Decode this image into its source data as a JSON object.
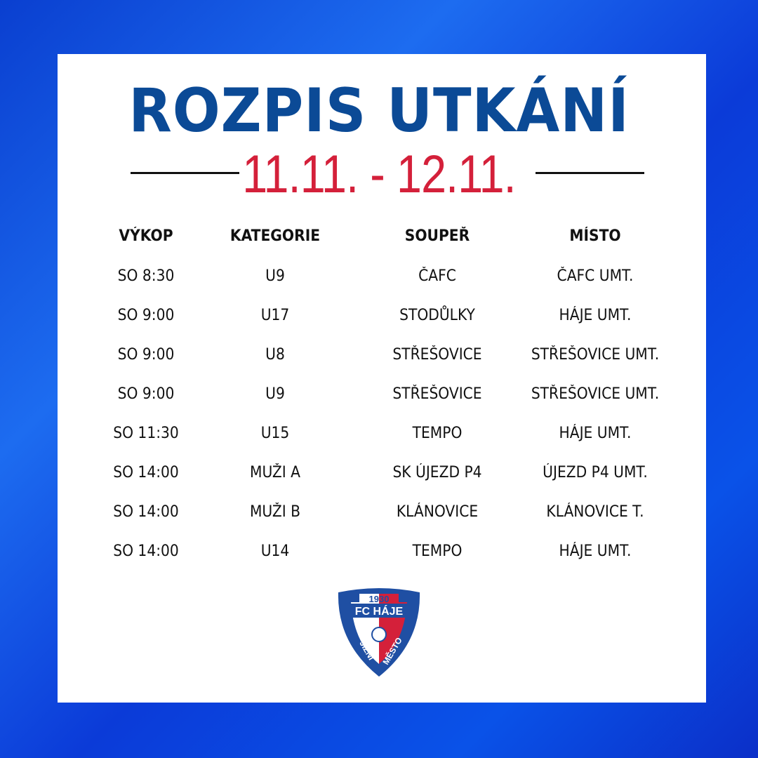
{
  "title": "ROZPIS UTKÁNÍ",
  "date_range": "11.11. - 12.11.",
  "colors": {
    "title": "#0b4a96",
    "date": "#d4203a",
    "background": "#1d6cf0"
  },
  "table": {
    "headers": [
      "VÝKOP",
      "KATEGORIE",
      "SOUPEŘ",
      "MÍSTO"
    ],
    "rows": [
      [
        "SO 8:30",
        "U9",
        "ČAFC",
        "ČAFC UMT."
      ],
      [
        "SO 9:00",
        "U17",
        "STODŮLKY",
        "HÁJE UMT."
      ],
      [
        "SO 9:00",
        "U8",
        "STŘEŠOVICE",
        "STŘEŠOVICE UMT."
      ],
      [
        "SO 9:00",
        "U9",
        "STŘEŠOVICE",
        "STŘEŠOVICE UMT."
      ],
      [
        "SO 11:30",
        "U15",
        "TEMPO",
        "HÁJE UMT."
      ],
      [
        "SO 14:00",
        "MUŽI A",
        "SK ÚJEZD P4",
        "ÚJEZD P4 UMT."
      ],
      [
        "SO 14:00",
        "MUŽI B",
        "KLÁNOVICE",
        "KLÁNOVICE T."
      ],
      [
        "SO 14:00",
        "U14",
        "TEMPO",
        "HÁJE UMT."
      ]
    ]
  },
  "logo": {
    "year": "1930",
    "name": "FC HÁJE",
    "left": "JIŽNÍ",
    "right": "MĚSTO"
  }
}
